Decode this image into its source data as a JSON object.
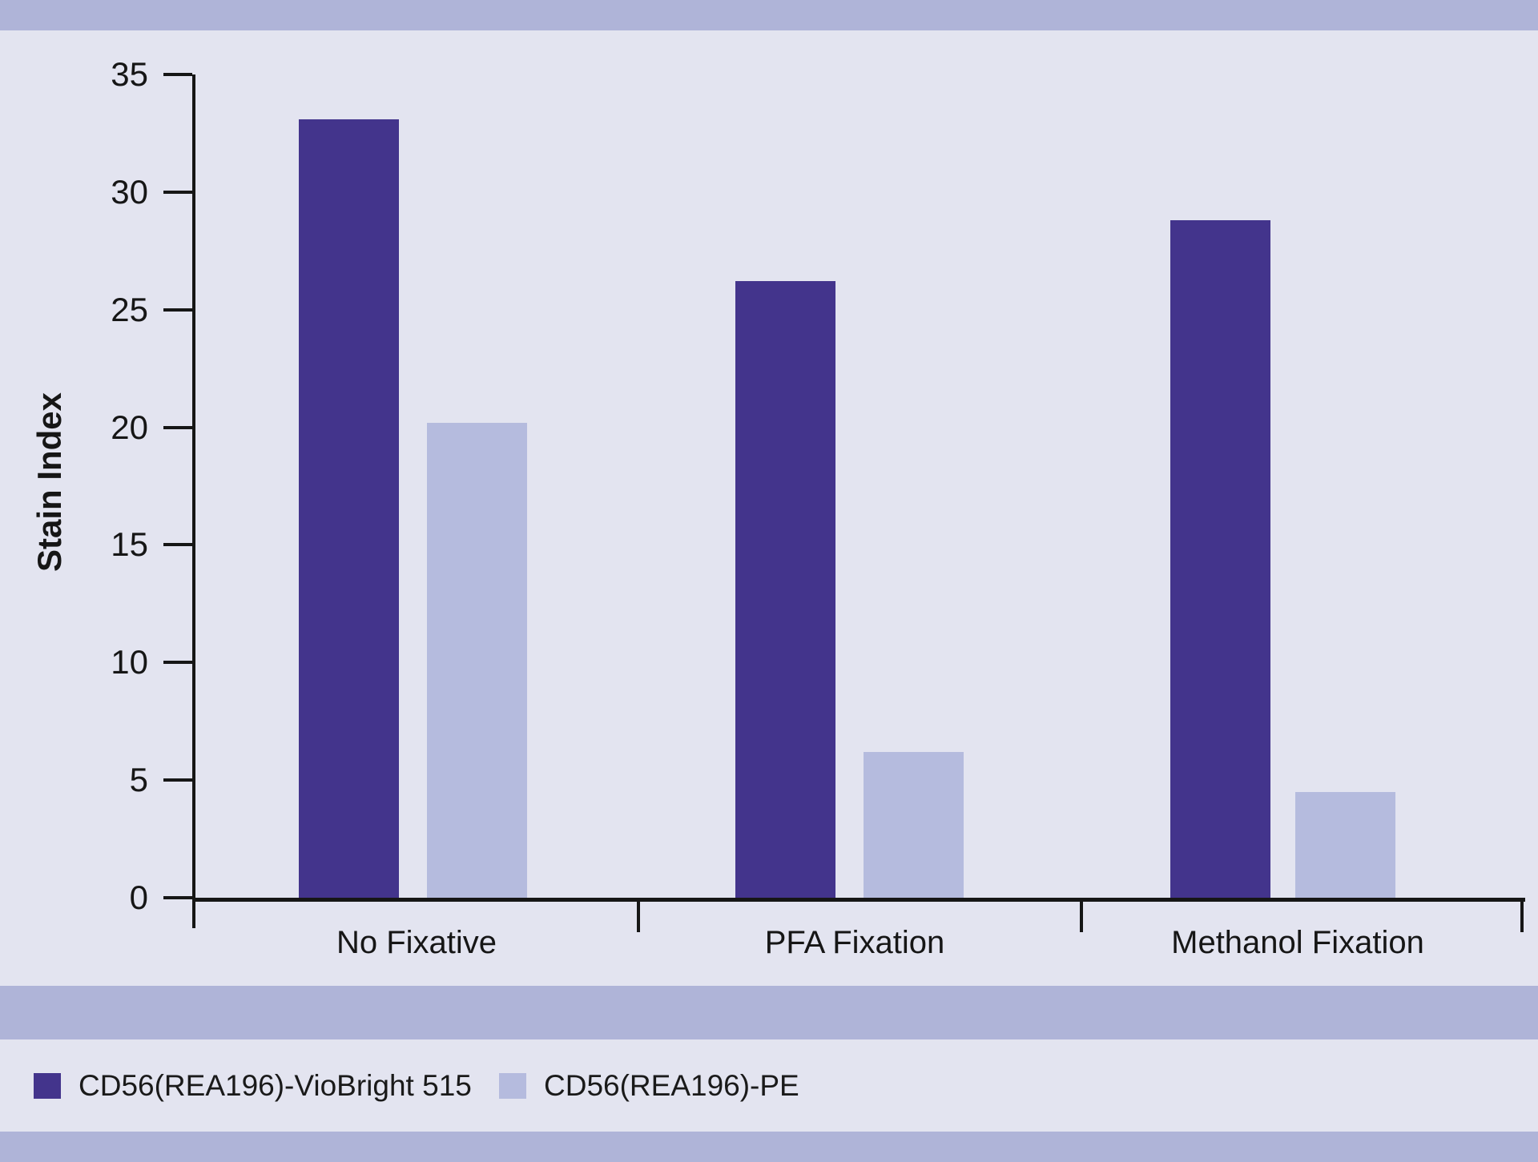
{
  "chart_data": {
    "type": "bar",
    "title": "",
    "ylabel": "Stain Index",
    "xlabel": "",
    "categories": [
      "No Fixative",
      "PFA Fixation",
      "Methanol Fixation"
    ],
    "series": [
      {
        "name": "CD56(REA196)-VioBright 515",
        "color": "#43348c",
        "values": [
          33.1,
          26.2,
          28.8
        ]
      },
      {
        "name": "CD56(REA196)-PE",
        "color": "#b5bbde",
        "values": [
          20.2,
          6.2,
          4.5
        ]
      }
    ],
    "ylim": [
      0,
      35
    ],
    "yticks": [
      0,
      5,
      10,
      15,
      20,
      25,
      30,
      35
    ],
    "grid": "off",
    "legend_position": "bottom"
  },
  "colors": {
    "background": "#e3e4f0",
    "band": "#afb4d8",
    "axis": "#161616",
    "bar_dark": "#43348c",
    "bar_light": "#b5bbde"
  }
}
